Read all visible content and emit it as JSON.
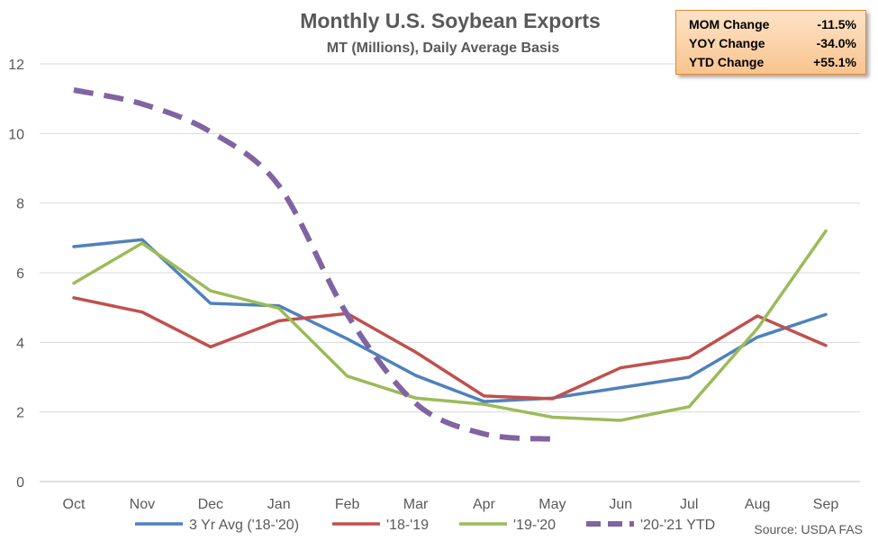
{
  "chart_data": {
    "type": "line",
    "title": "Monthly U.S. Soybean Exports",
    "subtitle": "MT (Millions), Daily Average Basis",
    "categories": [
      "Oct",
      "Nov",
      "Dec",
      "Jan",
      "Feb",
      "Mar",
      "Apr",
      "May",
      "Jun",
      "Jul",
      "Aug",
      "Sep"
    ],
    "ylim": [
      0,
      12
    ],
    "yticks": [
      "0",
      "2",
      "4",
      "6",
      "8",
      "10",
      "12"
    ],
    "grid": true,
    "legend_position": "bottom",
    "series": [
      {
        "name": "3 Yr Avg ('18-'20)",
        "color": "#4f81bd",
        "dash": false,
        "values": [
          6.75,
          6.95,
          5.12,
          5.05,
          4.1,
          3.05,
          2.3,
          2.4,
          2.7,
          3.0,
          4.15,
          4.8
        ]
      },
      {
        "name": "'18-'19",
        "color": "#c0504d",
        "dash": false,
        "values": [
          5.28,
          4.87,
          3.87,
          4.62,
          4.83,
          3.72,
          2.46,
          2.38,
          3.27,
          3.57,
          4.76,
          3.91
        ]
      },
      {
        "name": "'19-'20",
        "color": "#9bbb59",
        "dash": false,
        "values": [
          5.7,
          6.85,
          5.48,
          4.98,
          3.03,
          2.4,
          2.22,
          1.85,
          1.76,
          2.15,
          4.4,
          7.2
        ]
      },
      {
        "name": "'20-'21 YTD",
        "color": "#8064a2",
        "dash": true,
        "values": [
          11.25,
          10.85,
          10.05,
          8.5,
          4.8,
          2.25,
          1.37,
          1.22,
          null,
          null,
          null,
          null
        ]
      }
    ]
  },
  "stats": [
    {
      "label": "MOM Change",
      "value": "-11.5%"
    },
    {
      "label": "YOY Change",
      "value": "-34.0%"
    },
    {
      "label": "YTD Change",
      "value": "+55.1%"
    }
  ],
  "source": "Source: USDA FAS"
}
